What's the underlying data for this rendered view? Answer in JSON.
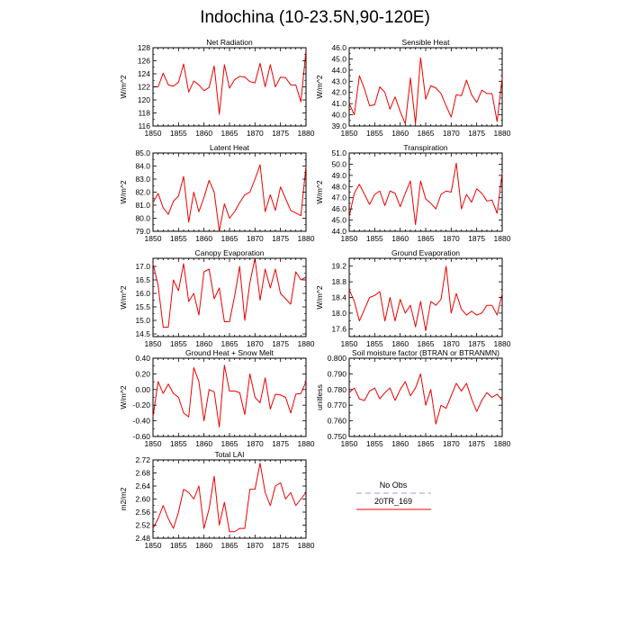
{
  "figure": {
    "title": "Indochina (10-23.5N,90-120E)"
  },
  "legend": {
    "entries": [
      {
        "label": "No Obs",
        "color": "#9999ee",
        "dash": true
      },
      {
        "label": "20TR_169",
        "color": "#ee0000",
        "dash": false
      }
    ]
  },
  "chart_data": [
    {
      "type": "line",
      "title": "Net Radiation",
      "xlabel": "",
      "ylabel": "W/m^2",
      "xlim": [
        1850,
        1880
      ],
      "ylim": [
        116,
        128
      ],
      "xticks": [
        1850,
        1855,
        1860,
        1865,
        1870,
        1875,
        1880
      ],
      "yticks": [
        116,
        118,
        120,
        122,
        124,
        126,
        128
      ],
      "ytick_labels": [
        "116",
        "118",
        "120",
        "122",
        "124",
        "126",
        "128"
      ],
      "series": [
        {
          "name": "20TR_169",
          "color": "#ee0000",
          "x": [
            1850,
            1851,
            1852,
            1853,
            1854,
            1855,
            1856,
            1857,
            1858,
            1859,
            1860,
            1861,
            1862,
            1863,
            1864,
            1865,
            1866,
            1867,
            1868,
            1869,
            1870,
            1871,
            1872,
            1873,
            1874,
            1875,
            1876,
            1877,
            1878,
            1879,
            1880
          ],
          "values": [
            122.0,
            122.0,
            124.1,
            122.3,
            122.1,
            122.7,
            125.5,
            121.2,
            122.9,
            122.3,
            121.4,
            121.9,
            125.2,
            117.8,
            125.4,
            121.8,
            123.1,
            123.6,
            123.5,
            122.8,
            122.6,
            125.6,
            122.0,
            125.4,
            122.0,
            123.5,
            123.4,
            122.3,
            122.3,
            119.7,
            127.6
          ]
        }
      ]
    },
    {
      "type": "line",
      "title": "Sensible Heat",
      "xlabel": "",
      "ylabel": "W/m^2",
      "xlim": [
        1850,
        1880
      ],
      "ylim": [
        39.0,
        46.0
      ],
      "xticks": [
        1850,
        1855,
        1860,
        1865,
        1870,
        1875,
        1880
      ],
      "yticks": [
        39,
        40,
        41,
        42,
        43,
        44,
        45,
        46
      ],
      "ytick_labels": [
        "39.0",
        "40.0",
        "41.0",
        "42.0",
        "43.0",
        "44.0",
        "45.0",
        "46.0"
      ],
      "series": [
        {
          "name": "20TR_169",
          "color": "#ee0000",
          "x": [
            1850,
            1851,
            1852,
            1853,
            1854,
            1855,
            1856,
            1857,
            1858,
            1859,
            1860,
            1861,
            1862,
            1863,
            1864,
            1865,
            1866,
            1867,
            1868,
            1869,
            1870,
            1871,
            1872,
            1873,
            1874,
            1875,
            1876,
            1877,
            1878,
            1879,
            1880
          ],
          "values": [
            41.0,
            40.0,
            43.5,
            42.3,
            40.8,
            40.9,
            42.5,
            42.0,
            40.5,
            41.6,
            40.3,
            39.2,
            43.3,
            39.2,
            45.1,
            41.4,
            42.6,
            42.4,
            41.9,
            40.8,
            39.8,
            41.8,
            41.7,
            43.1,
            41.8,
            41.1,
            42.2,
            41.9,
            41.9,
            39.4,
            43.3
          ]
        }
      ]
    },
    {
      "type": "line",
      "title": "Latent Heat",
      "xlabel": "",
      "ylabel": "W/m^2",
      "xlim": [
        1850,
        1880
      ],
      "ylim": [
        79.0,
        85.0
      ],
      "xticks": [
        1850,
        1855,
        1860,
        1865,
        1870,
        1875,
        1880
      ],
      "yticks": [
        79,
        80,
        81,
        82,
        83,
        84,
        85
      ],
      "ytick_labels": [
        "79.0",
        "80.0",
        "81.0",
        "82.0",
        "83.0",
        "84.0",
        "85.0"
      ],
      "series": [
        {
          "name": "20TR_169",
          "color": "#ee0000",
          "x": [
            1850,
            1851,
            1852,
            1853,
            1854,
            1855,
            1856,
            1857,
            1858,
            1859,
            1860,
            1861,
            1862,
            1863,
            1864,
            1865,
            1866,
            1867,
            1868,
            1869,
            1870,
            1871,
            1872,
            1873,
            1874,
            1875,
            1876,
            1877,
            1878,
            1879,
            1880
          ],
          "values": [
            81.2,
            81.9,
            80.8,
            80.3,
            81.3,
            81.7,
            83.2,
            79.7,
            82.0,
            80.5,
            81.6,
            82.9,
            82.0,
            79.0,
            81.1,
            80.0,
            80.5,
            81.2,
            81.8,
            82.0,
            83.0,
            84.1,
            80.5,
            81.8,
            80.6,
            82.4,
            81.5,
            80.6,
            80.4,
            80.2,
            84.0
          ]
        }
      ]
    },
    {
      "type": "line",
      "title": "Transpiration",
      "xlabel": "",
      "ylabel": "W/m^2",
      "xlim": [
        1850,
        1880
      ],
      "ylim": [
        44.0,
        51.0
      ],
      "xticks": [
        1850,
        1855,
        1860,
        1865,
        1870,
        1875,
        1880
      ],
      "yticks": [
        44,
        45,
        46,
        47,
        48,
        49,
        50,
        51
      ],
      "ytick_labels": [
        "44.0",
        "45.0",
        "46.0",
        "47.0",
        "48.0",
        "49.0",
        "50.0",
        "51.0"
      ],
      "series": [
        {
          "name": "20TR_169",
          "color": "#ee0000",
          "x": [
            1850,
            1851,
            1852,
            1853,
            1854,
            1855,
            1856,
            1857,
            1858,
            1859,
            1860,
            1861,
            1862,
            1863,
            1864,
            1865,
            1866,
            1867,
            1868,
            1869,
            1870,
            1871,
            1872,
            1873,
            1874,
            1875,
            1876,
            1877,
            1878,
            1879,
            1880
          ],
          "values": [
            45.3,
            47.4,
            48.2,
            47.3,
            46.4,
            47.3,
            47.6,
            46.3,
            47.6,
            47.4,
            46.2,
            47.4,
            48.5,
            44.6,
            48.5,
            46.9,
            46.5,
            46.0,
            47.3,
            47.6,
            47.5,
            50.1,
            46.0,
            47.3,
            46.6,
            47.8,
            47.4,
            46.7,
            46.8,
            45.6,
            49.2
          ]
        }
      ]
    },
    {
      "type": "line",
      "title": "Canopy Evaporation",
      "xlabel": "",
      "ylabel": "W/m^2",
      "xlim": [
        1850,
        1880
      ],
      "ylim": [
        14.4,
        17.3
      ],
      "xticks": [
        1850,
        1855,
        1860,
        1865,
        1870,
        1875,
        1880
      ],
      "yticks": [
        14.5,
        15.0,
        15.5,
        16.0,
        16.5,
        17.0
      ],
      "ytick_labels": [
        "14.5",
        "15.0",
        "15.5",
        "16.0",
        "16.5",
        "17.0"
      ],
      "series": [
        {
          "name": "20TR_169",
          "color": "#ee0000",
          "x": [
            1850,
            1851,
            1852,
            1853,
            1854,
            1855,
            1856,
            1857,
            1858,
            1859,
            1860,
            1861,
            1862,
            1863,
            1864,
            1865,
            1866,
            1867,
            1868,
            1869,
            1870,
            1871,
            1872,
            1873,
            1874,
            1875,
            1876,
            1877,
            1878,
            1879,
            1880
          ],
          "values": [
            17.1,
            16.3,
            14.75,
            14.75,
            16.5,
            16.1,
            17.1,
            15.7,
            16.0,
            15.2,
            16.8,
            16.9,
            15.8,
            16.2,
            14.95,
            14.95,
            15.9,
            17.0,
            15.0,
            16.4,
            17.3,
            15.75,
            16.9,
            16.2,
            16.9,
            16.0,
            15.8,
            15.6,
            16.8,
            16.5,
            16.6
          ]
        }
      ]
    },
    {
      "type": "line",
      "title": "Ground Evaporation",
      "xlabel": "",
      "ylabel": "W/m^2",
      "xlim": [
        1850,
        1880
      ],
      "ylim": [
        17.4,
        19.4
      ],
      "xticks": [
        1850,
        1855,
        1860,
        1865,
        1870,
        1875,
        1880
      ],
      "yticks": [
        17.6,
        18.0,
        18.4,
        18.8,
        19.2
      ],
      "ytick_labels": [
        "17.6",
        "18.0",
        "18.4",
        "18.8",
        "19.2"
      ],
      "series": [
        {
          "name": "20TR_169",
          "color": "#ee0000",
          "x": [
            1850,
            1851,
            1852,
            1853,
            1854,
            1855,
            1856,
            1857,
            1858,
            1859,
            1860,
            1861,
            1862,
            1863,
            1864,
            1865,
            1866,
            1867,
            1868,
            1869,
            1870,
            1871,
            1872,
            1873,
            1874,
            1875,
            1876,
            1877,
            1878,
            1879,
            1880
          ],
          "values": [
            18.6,
            18.3,
            17.8,
            18.1,
            18.4,
            18.45,
            18.55,
            17.8,
            18.4,
            17.8,
            18.35,
            18.0,
            18.2,
            17.65,
            18.3,
            17.55,
            18.3,
            18.2,
            18.35,
            19.2,
            18.0,
            18.5,
            18.1,
            17.95,
            18.05,
            17.95,
            18.0,
            18.2,
            18.2,
            17.95,
            18.5
          ]
        }
      ]
    },
    {
      "type": "line",
      "title": "Ground Heat + Snow Melt",
      "xlabel": "",
      "ylabel": "W/m^2",
      "xlim": [
        1850,
        1880
      ],
      "ylim": [
        -0.6,
        0.4
      ],
      "xticks": [
        1850,
        1855,
        1860,
        1865,
        1870,
        1875,
        1880
      ],
      "yticks": [
        -0.6,
        -0.4,
        -0.2,
        0.0,
        0.2,
        0.4
      ],
      "ytick_labels": [
        "-0.60",
        "-0.40",
        "-0.20",
        "0.00",
        "0.20",
        "0.40"
      ],
      "series": [
        {
          "name": "20TR_169",
          "color": "#ee0000",
          "x": [
            1850,
            1851,
            1852,
            1853,
            1854,
            1855,
            1856,
            1857,
            1858,
            1859,
            1860,
            1861,
            1862,
            1863,
            1864,
            1865,
            1866,
            1867,
            1868,
            1869,
            1870,
            1871,
            1872,
            1873,
            1874,
            1875,
            1876,
            1877,
            1878,
            1879,
            1880
          ],
          "values": [
            -0.35,
            0.1,
            -0.05,
            0.07,
            -0.05,
            -0.1,
            -0.3,
            -0.35,
            0.28,
            0.1,
            -0.4,
            0.0,
            -0.03,
            -0.48,
            0.31,
            -0.02,
            -0.02,
            -0.04,
            -0.32,
            0.2,
            -0.1,
            -0.17,
            0.15,
            -0.25,
            -0.06,
            -0.07,
            -0.1,
            -0.3,
            -0.06,
            -0.05,
            0.1
          ]
        }
      ]
    },
    {
      "type": "line",
      "title": "Soil moisture factor (BTRAN or BTRANMN)",
      "xlabel": "",
      "ylabel": "unitless",
      "xlim": [
        1850,
        1880
      ],
      "ylim": [
        0.75,
        0.8
      ],
      "xticks": [
        1850,
        1855,
        1860,
        1865,
        1870,
        1875,
        1880
      ],
      "yticks": [
        0.75,
        0.76,
        0.77,
        0.78,
        0.79,
        0.8
      ],
      "ytick_labels": [
        "0.750",
        "0.760",
        "0.770",
        "0.780",
        "0.790",
        "0.800"
      ],
      "series": [
        {
          "name": "20TR_169",
          "color": "#ee0000",
          "x": [
            1850,
            1851,
            1852,
            1853,
            1854,
            1855,
            1856,
            1857,
            1858,
            1859,
            1860,
            1861,
            1862,
            1863,
            1864,
            1865,
            1866,
            1867,
            1868,
            1869,
            1870,
            1871,
            1872,
            1873,
            1874,
            1875,
            1876,
            1877,
            1878,
            1879,
            1880
          ],
          "values": [
            0.778,
            0.781,
            0.774,
            0.773,
            0.779,
            0.781,
            0.774,
            0.778,
            0.781,
            0.773,
            0.78,
            0.785,
            0.776,
            0.781,
            0.79,
            0.77,
            0.78,
            0.758,
            0.77,
            0.768,
            0.776,
            0.784,
            0.779,
            0.784,
            0.774,
            0.766,
            0.773,
            0.778,
            0.775,
            0.777,
            0.773
          ]
        }
      ]
    },
    {
      "type": "line",
      "title": "Total LAI",
      "xlabel": "",
      "ylabel": "m2/m2",
      "xlim": [
        1850,
        1880
      ],
      "ylim": [
        2.48,
        2.72
      ],
      "xticks": [
        1850,
        1855,
        1860,
        1865,
        1870,
        1875,
        1880
      ],
      "yticks": [
        2.48,
        2.52,
        2.56,
        2.6,
        2.64,
        2.68,
        2.72
      ],
      "ytick_labels": [
        "2.48",
        "2.52",
        "2.56",
        "2.60",
        "2.64",
        "2.68",
        "2.72"
      ],
      "series": [
        {
          "name": "20TR_169",
          "color": "#ee0000",
          "x": [
            1850,
            1851,
            1852,
            1853,
            1854,
            1855,
            1856,
            1857,
            1858,
            1859,
            1860,
            1861,
            1862,
            1863,
            1864,
            1865,
            1866,
            1867,
            1868,
            1869,
            1870,
            1871,
            1872,
            1873,
            1874,
            1875,
            1876,
            1877,
            1878,
            1879,
            1880
          ],
          "values": [
            2.51,
            2.54,
            2.58,
            2.54,
            2.51,
            2.56,
            2.63,
            2.62,
            2.6,
            2.64,
            2.51,
            2.57,
            2.67,
            2.52,
            2.59,
            2.5,
            2.5,
            2.51,
            2.51,
            2.63,
            2.63,
            2.71,
            2.62,
            2.58,
            2.64,
            2.65,
            2.6,
            2.62,
            2.58,
            2.6,
            2.62
          ]
        }
      ]
    }
  ]
}
